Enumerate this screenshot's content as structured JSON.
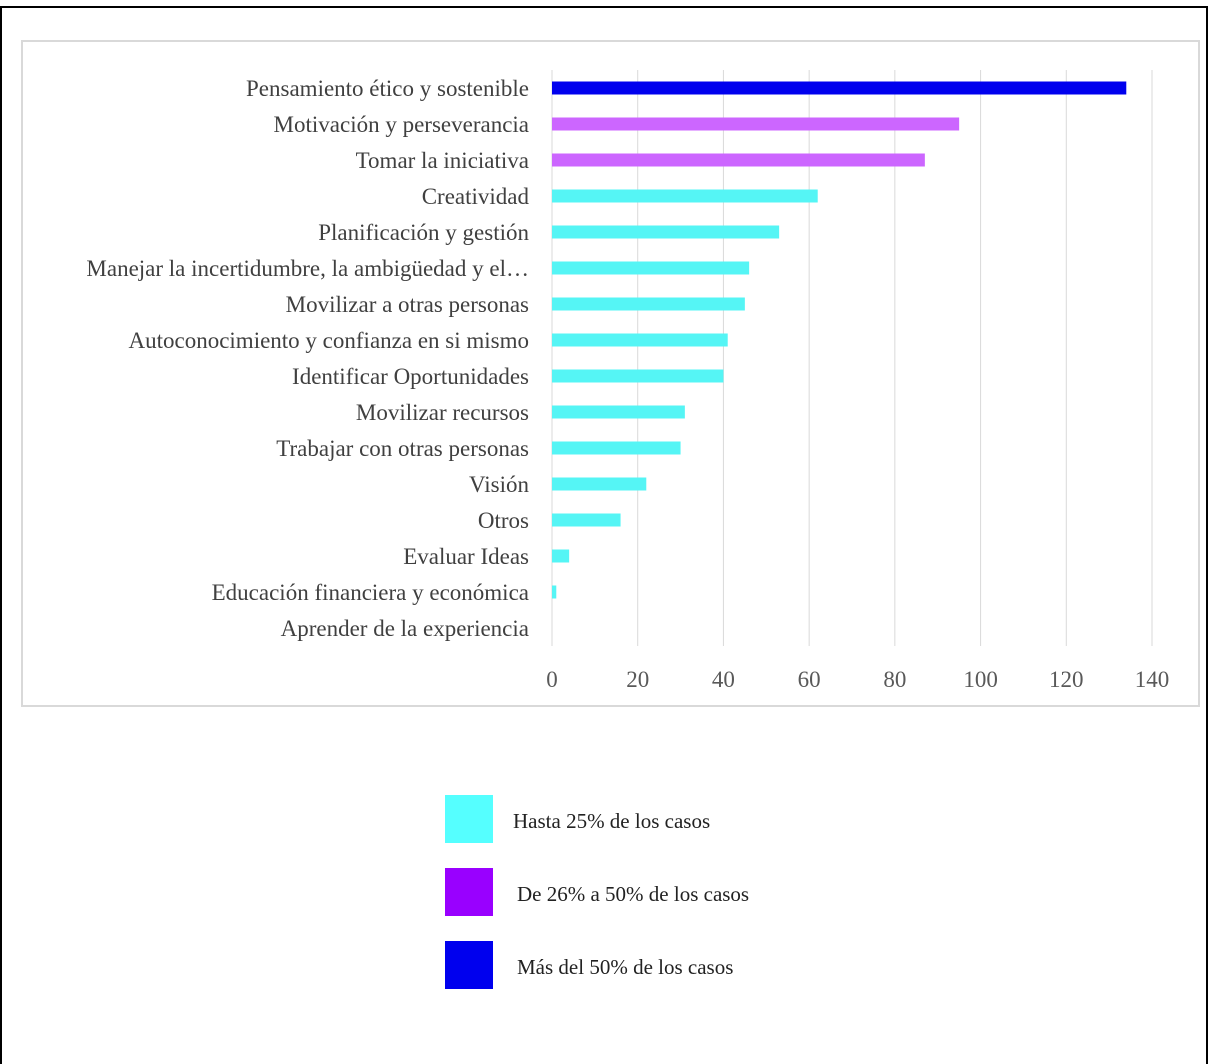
{
  "chart_data": {
    "type": "bar",
    "orientation": "horizontal",
    "categories": [
      "Pensamiento ético y sostenible",
      "Motivación y perseverancia",
      "Tomar la iniciativa",
      "Creatividad",
      "Planificación y gestión",
      "Manejar la incertidumbre, la ambigüedad y el…",
      "Movilizar a otras personas",
      "Autoconocimiento y confianza en si mismo",
      "Identificar Oportunidades",
      "Movilizar recursos",
      "Trabajar con otras personas",
      "Visión",
      "Otros",
      "Evaluar Ideas",
      "Educación financiera y económica",
      "Aprender de la experiencia"
    ],
    "values": [
      134,
      95,
      87,
      62,
      53,
      46,
      45,
      41,
      40,
      31,
      30,
      22,
      16,
      4,
      1,
      0
    ],
    "bar_groups": [
      2,
      1,
      1,
      0,
      0,
      0,
      0,
      0,
      0,
      0,
      0,
      0,
      0,
      0,
      0,
      0
    ],
    "xlim": [
      0,
      140
    ],
    "xticks": [
      0,
      20,
      40,
      60,
      80,
      100,
      120,
      140
    ],
    "grid": "vertical",
    "legend": {
      "placement": "bottom",
      "items": [
        {
          "label": "Hasta 25% de los casos",
          "color": "#55ffff"
        },
        {
          "label": "De 26% a 50% de los casos",
          "color": "#9900ff"
        },
        {
          "label": "Más del 50% de los casos",
          "color": "#0000ee"
        }
      ]
    },
    "bar_colors": [
      "#55f5f5",
      "#cc66ff",
      "#0000ee"
    ]
  }
}
